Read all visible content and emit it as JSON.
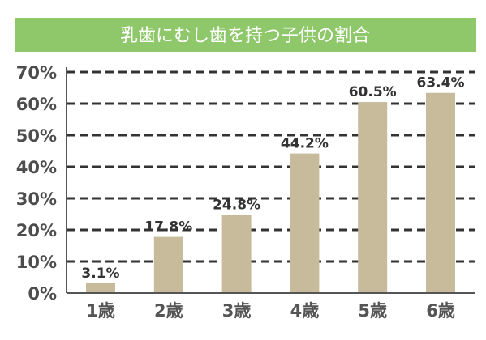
{
  "chart_data": {
    "type": "bar",
    "title": "乳歯にむし歯を持つ子供の割合",
    "categories": [
      "1歳",
      "2歳",
      "3歳",
      "4歳",
      "5歳",
      "6歳"
    ],
    "values": [
      3.1,
      17.8,
      24.8,
      44.2,
      60.5,
      63.4
    ],
    "value_labels": [
      "3.1%",
      "17.8%",
      "24.8%",
      "44.2%",
      "60.5%",
      "63.4%"
    ],
    "y_ticks": [
      "0%",
      "10%",
      "20%",
      "30%",
      "40%",
      "50%",
      "60%",
      "70%"
    ],
    "ylim": [
      0,
      70
    ],
    "xlabel": "",
    "ylabel": "",
    "grid": true,
    "grid_style": "dashed",
    "legend": "none",
    "colors": {
      "title_background": "#8ec86a",
      "title_text": "#ffffff",
      "bar": "#c8bb9b",
      "grid": "#333333",
      "axis": "#555555"
    }
  }
}
